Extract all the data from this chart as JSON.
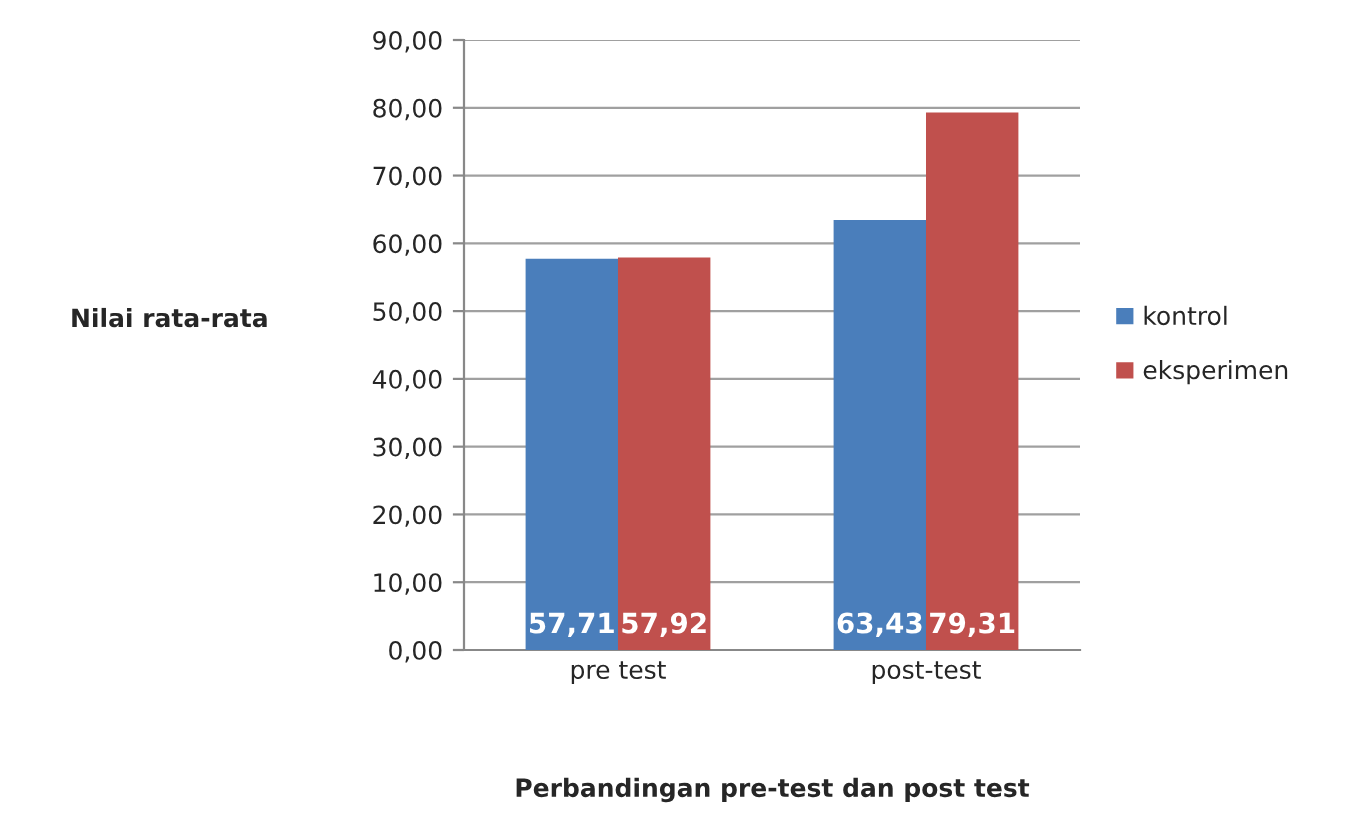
{
  "chart_data": {
    "type": "bar",
    "xlabel": "Perbandingan pre-test dan post test",
    "ylabel": "Nilai rata-rata",
    "categories": [
      "pre test",
      "post-test"
    ],
    "series": [
      {
        "name": "kontrol",
        "color": "#4a7ebb",
        "values": [
          57.71,
          63.43
        ],
        "value_labels": [
          "57,71",
          "63,43"
        ]
      },
      {
        "name": "eksperimen",
        "color": "#c0504d",
        "values": [
          57.92,
          79.31
        ],
        "value_labels": [
          "57,92",
          "79,31"
        ]
      }
    ],
    "ylim": [
      0,
      90
    ],
    "yticks": [
      {
        "value": 0,
        "label": "0,00"
      },
      {
        "value": 10,
        "label": "10,00"
      },
      {
        "value": 20,
        "label": "20,00"
      },
      {
        "value": 30,
        "label": "30,00"
      },
      {
        "value": 40,
        "label": "40,00"
      },
      {
        "value": 50,
        "label": "50,00"
      },
      {
        "value": 60,
        "label": "60,00"
      },
      {
        "value": 70,
        "label": "70,00"
      },
      {
        "value": 80,
        "label": "80,00"
      },
      {
        "value": 90,
        "label": "90,00"
      }
    ],
    "grid": "y",
    "legend": "right"
  }
}
